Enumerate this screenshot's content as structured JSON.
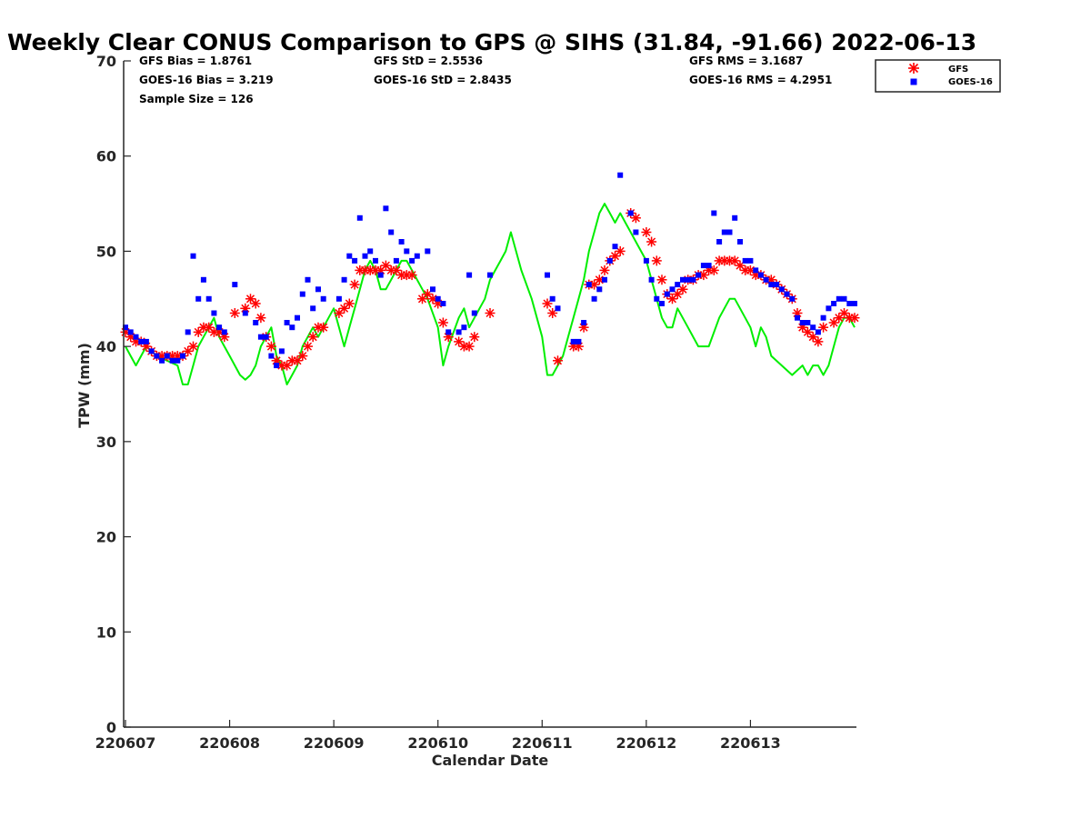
{
  "chart_data": {
    "type": "line",
    "title": "Weekly Clear CONUS Comparison to GPS @ SIHS (31.84, -91.66) 2022-06-13",
    "xlabel": "Calendar Date",
    "ylabel": "TPW (mm)",
    "xlim": [
      0,
      7
    ],
    "ylim": [
      0,
      70
    ],
    "yticks": [
      0,
      10,
      20,
      30,
      40,
      50,
      60,
      70
    ],
    "xticks": [
      {
        "x": 0,
        "label": "220607"
      },
      {
        "x": 1,
        "label": "220608"
      },
      {
        "x": 2,
        "label": "220609"
      },
      {
        "x": 3,
        "label": "220610"
      },
      {
        "x": 4,
        "label": "220611"
      },
      {
        "x": 5,
        "label": "220612"
      },
      {
        "x": 6,
        "label": "220613"
      }
    ],
    "stats": {
      "gfs_bias": "GFS Bias = 1.8761",
      "goes_bias": "GOES-16 Bias = 3.219",
      "sample_size": "Sample Size = 126",
      "gfs_std": "GFS StD = 2.5536",
      "goes_std": "GOES-16 StD = 2.8435",
      "gfs_rms": "GFS RMS = 3.1687",
      "goes_rms": "GOES-16 RMS = 4.2951"
    },
    "legend": {
      "position": "top-right",
      "entries": [
        "GFS",
        "GOES-16"
      ]
    },
    "series": [
      {
        "name": "GPS",
        "style": "line",
        "color": "#00ee00",
        "x": [
          0,
          0.05,
          0.1,
          0.15,
          0.2,
          0.3,
          0.4,
          0.5,
          0.55,
          0.6,
          0.65,
          0.7,
          0.75,
          0.8,
          0.85,
          0.9,
          0.95,
          1.0,
          1.05,
          1.1,
          1.15,
          1.2,
          1.25,
          1.3,
          1.35,
          1.4,
          1.45,
          1.5,
          1.55,
          1.6,
          1.65,
          1.7,
          1.75,
          1.8,
          1.85,
          1.9,
          1.95,
          2.0,
          2.05,
          2.1,
          2.15,
          2.2,
          2.3,
          2.35,
          2.4,
          2.45,
          2.5,
          2.55,
          2.6,
          2.65,
          2.7,
          2.75,
          2.8,
          2.9,
          3.0,
          3.05,
          3.1,
          3.2,
          3.25,
          3.3,
          3.35,
          3.4,
          3.45,
          3.5,
          3.55,
          3.6,
          3.65,
          3.7,
          3.8,
          3.9,
          4.0,
          4.05,
          4.1,
          4.15,
          4.2,
          4.25,
          4.3,
          4.35,
          4.4,
          4.45,
          4.5,
          4.55,
          4.6,
          4.65,
          4.7,
          4.75,
          4.8,
          4.85,
          4.9,
          4.95,
          5.0,
          5.05,
          5.1,
          5.15,
          5.2,
          5.25,
          5.3,
          5.4,
          5.5,
          5.6,
          5.7,
          5.8,
          5.85,
          5.9,
          6.0,
          6.05,
          6.1,
          6.15,
          6.2,
          6.3,
          6.4,
          6.5,
          6.55,
          6.6,
          6.65,
          6.7,
          6.75,
          6.8,
          6.85,
          6.9,
          6.95,
          7.0
        ],
        "y": [
          40,
          39,
          38,
          39,
          40,
          39,
          38.5,
          38,
          36,
          36,
          38,
          40,
          41,
          42,
          43,
          41,
          40,
          39,
          38,
          37,
          36.5,
          37,
          38,
          40,
          41,
          42,
          39,
          38,
          36,
          37,
          38,
          40,
          41,
          42,
          41,
          42,
          43,
          44,
          42,
          40,
          42,
          44,
          48,
          49,
          48,
          46,
          46,
          47,
          48,
          49,
          49,
          48,
          47,
          45,
          42,
          38,
          40,
          43,
          44,
          42,
          43,
          44,
          45,
          47,
          48,
          49,
          50,
          52,
          48,
          45,
          41,
          37,
          37,
          38,
          39,
          41,
          43,
          45,
          47,
          50,
          52,
          54,
          55,
          54,
          53,
          54,
          53,
          52,
          51,
          50,
          49,
          47,
          45,
          43,
          42,
          42,
          44,
          42,
          40,
          40,
          43,
          45,
          45,
          44,
          42,
          40,
          42,
          41,
          39,
          38,
          37,
          38,
          37,
          38,
          38,
          37,
          38,
          40,
          42,
          43,
          43,
          42
        ]
      },
      {
        "name": "GFS",
        "style": "marker-asterisk",
        "color": "#ff0000",
        "x": [
          0,
          0.05,
          0.1,
          0.15,
          0.2,
          0.25,
          0.3,
          0.35,
          0.4,
          0.45,
          0.5,
          0.55,
          0.6,
          0.65,
          0.7,
          0.75,
          0.8,
          0.85,
          0.9,
          0.95,
          1.05,
          1.15,
          1.2,
          1.25,
          1.3,
          1.35,
          1.4,
          1.45,
          1.5,
          1.55,
          1.6,
          1.65,
          1.7,
          1.75,
          1.8,
          1.85,
          1.9,
          2.05,
          2.1,
          2.15,
          2.2,
          2.25,
          2.3,
          2.35,
          2.4,
          2.45,
          2.5,
          2.55,
          2.6,
          2.65,
          2.7,
          2.75,
          2.85,
          2.9,
          2.95,
          3.0,
          3.05,
          3.1,
          3.2,
          3.25,
          3.3,
          3.35,
          3.5,
          4.05,
          4.1,
          4.15,
          4.3,
          4.35,
          4.4,
          4.45,
          4.5,
          4.55,
          4.6,
          4.65,
          4.7,
          4.75,
          4.85,
          4.9,
          5.0,
          5.05,
          5.1,
          5.15,
          5.2,
          5.25,
          5.3,
          5.35,
          5.4,
          5.45,
          5.5,
          5.55,
          5.6,
          5.65,
          5.7,
          5.75,
          5.8,
          5.85,
          5.9,
          5.95,
          6.0,
          6.05,
          6.1,
          6.15,
          6.2,
          6.25,
          6.3,
          6.35,
          6.4,
          6.45,
          6.5,
          6.55,
          6.6,
          6.65,
          6.7,
          6.8,
          6.85,
          6.9,
          6.95,
          7.0
        ],
        "y": [
          41.5,
          41,
          40.5,
          40.5,
          40,
          39.5,
          39,
          39,
          39,
          39,
          39,
          39,
          39.5,
          40,
          41.5,
          42,
          42,
          41.5,
          41.5,
          41,
          43.5,
          44,
          45,
          44.5,
          43,
          41,
          40,
          38.5,
          38,
          38,
          38.5,
          38.5,
          39,
          40,
          41,
          42,
          42,
          43.5,
          44,
          44.5,
          46.5,
          48,
          48,
          48,
          48,
          48,
          48.5,
          48,
          48,
          47.5,
          47.5,
          47.5,
          45,
          45.5,
          45,
          44.5,
          42.5,
          41,
          40.5,
          40,
          40,
          41,
          43.5,
          44.5,
          43.5,
          38.5,
          40,
          40,
          42,
          46.5,
          46.5,
          47,
          48,
          49,
          49.5,
          50,
          54,
          53.5,
          52,
          51,
          49,
          47,
          45.5,
          45,
          45.5,
          46,
          47,
          47,
          47.5,
          47.5,
          48,
          48,
          49,
          49,
          49,
          49,
          48.5,
          48,
          48,
          47.5,
          47.5,
          47,
          47,
          46.5,
          46,
          45.5,
          45,
          43.5,
          42,
          41.5,
          41,
          40.5,
          42,
          42.5,
          43,
          43.5,
          43,
          43
        ]
      },
      {
        "name": "GOES-16",
        "style": "marker-square",
        "color": "#0000ff",
        "x": [
          0,
          0.05,
          0.1,
          0.15,
          0.2,
          0.25,
          0.3,
          0.35,
          0.4,
          0.45,
          0.5,
          0.55,
          0.6,
          0.65,
          0.7,
          0.75,
          0.8,
          0.85,
          0.9,
          0.95,
          1.05,
          1.15,
          1.25,
          1.3,
          1.35,
          1.4,
          1.45,
          1.5,
          1.55,
          1.6,
          1.65,
          1.7,
          1.75,
          1.8,
          1.85,
          1.9,
          2.05,
          2.1,
          2.15,
          2.2,
          2.25,
          2.3,
          2.35,
          2.4,
          2.45,
          2.5,
          2.55,
          2.6,
          2.65,
          2.7,
          2.75,
          2.8,
          2.9,
          2.95,
          3.0,
          3.05,
          3.1,
          3.2,
          3.25,
          3.3,
          3.35,
          3.5,
          4.05,
          4.1,
          4.15,
          4.3,
          4.35,
          4.4,
          4.45,
          4.5,
          4.55,
          4.6,
          4.65,
          4.7,
          4.75,
          4.85,
          4.9,
          5.0,
          5.05,
          5.1,
          5.15,
          5.2,
          5.25,
          5.3,
          5.35,
          5.4,
          5.45,
          5.5,
          5.55,
          5.6,
          5.65,
          5.7,
          5.75,
          5.8,
          5.85,
          5.9,
          5.95,
          6.0,
          6.05,
          6.1,
          6.15,
          6.2,
          6.25,
          6.3,
          6.35,
          6.4,
          6.45,
          6.5,
          6.55,
          6.6,
          6.65,
          6.7,
          6.75,
          6.8,
          6.85,
          6.9,
          6.95,
          7.0
        ],
        "y": [
          42,
          41.5,
          41,
          40.5,
          40.5,
          39.5,
          39,
          38.5,
          39,
          38.5,
          38.5,
          39,
          41.5,
          49.5,
          45,
          47,
          45,
          43.5,
          42,
          41.5,
          46.5,
          43.5,
          42.5,
          41,
          41,
          39,
          38,
          39.5,
          42.5,
          42,
          43,
          45.5,
          47,
          44,
          46,
          45,
          45,
          47,
          49.5,
          49,
          53.5,
          49.5,
          50,
          49,
          47.5,
          54.5,
          52,
          49,
          51,
          50,
          49,
          49.5,
          50,
          46,
          45,
          44.5,
          41.5,
          41.5,
          42,
          47.5,
          43.5,
          47.5,
          47.5,
          45,
          44,
          40.5,
          40.5,
          42.5,
          46.5,
          45,
          46,
          47,
          49,
          50.5,
          58,
          54,
          52,
          49,
          47,
          45,
          44.5,
          45.5,
          46,
          46.5,
          47,
          47,
          47,
          47.5,
          48.5,
          48.5,
          54,
          51,
          52,
          52,
          53.5,
          51,
          49,
          49,
          48,
          47.5,
          47,
          46.5,
          46.5,
          46,
          45.5,
          45,
          43,
          42.5,
          42.5,
          42,
          41.5,
          43,
          44,
          44.5,
          45,
          45,
          44.5,
          44.5
        ]
      }
    ]
  }
}
